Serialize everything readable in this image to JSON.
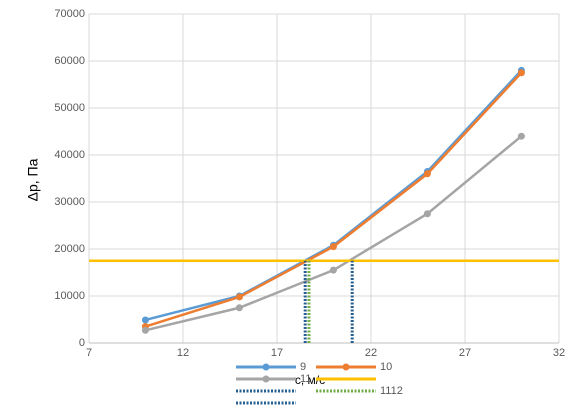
{
  "chart_data": {
    "type": "line",
    "x_label": "с, м/с",
    "y_label": "Δp, Па",
    "xlim": [
      7,
      32
    ],
    "xticks": [
      7,
      12,
      17,
      22,
      27,
      32
    ],
    "ylim": [
      0,
      70000
    ],
    "yticks": [
      0,
      10000,
      20000,
      30000,
      40000,
      50000,
      60000,
      70000
    ],
    "grid": true,
    "series": [
      {
        "name": "9",
        "color": "#5b9bd5",
        "marker": true,
        "x": [
          10,
          15,
          20,
          25,
          30
        ],
        "values": [
          4900,
          10000,
          20800,
          36500,
          58000
        ]
      },
      {
        "name": "10",
        "color": "#ed7d31",
        "marker": true,
        "x": [
          10,
          15,
          20,
          25,
          30
        ],
        "values": [
          3500,
          9800,
          20500,
          36000,
          57500
        ]
      },
      {
        "name": "11",
        "color": "#a5a5a5",
        "marker": true,
        "x": [
          10,
          15,
          20,
          25,
          30
        ],
        "values": [
          2700,
          7500,
          15500,
          27500,
          44000
        ]
      },
      {
        "color": "#ffc000",
        "marker": false,
        "x": [
          7,
          32
        ],
        "values": [
          17500,
          17500
        ]
      },
      {
        "color": "#255e91",
        "marker": false,
        "dash": true,
        "x": [
          18.5,
          18.5
        ],
        "values": [
          0,
          17500
        ]
      },
      {
        "name": "1112",
        "color": "#70ad47",
        "marker": false,
        "dash": true,
        "x": [
          18.7,
          18.7
        ],
        "values": [
          0,
          17500
        ]
      },
      {
        "color": "#255e91",
        "marker": false,
        "dash": true,
        "x": [
          21,
          21
        ],
        "values": [
          0,
          17500
        ]
      }
    ]
  }
}
